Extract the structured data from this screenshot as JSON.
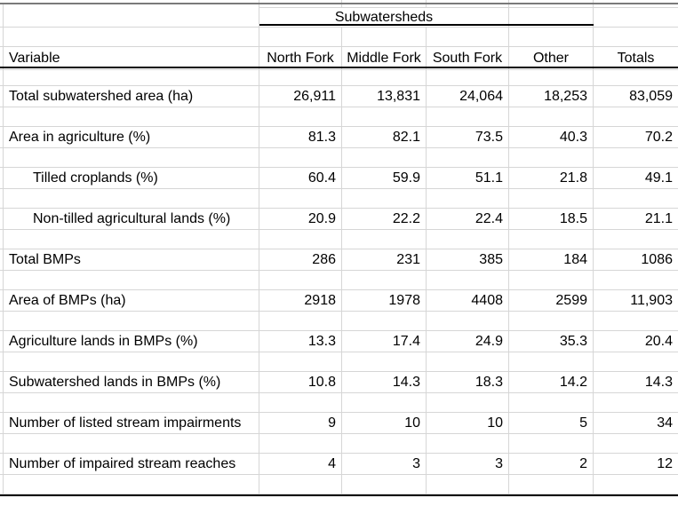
{
  "colors": {
    "background": "#ffffff",
    "gridline": "#d6d6d6",
    "heavy_rule": "#000000",
    "top_rule": "#7a7a7a",
    "text": "#000000"
  },
  "table": {
    "group_header": "Subwatersheds",
    "header": {
      "variable": "Variable",
      "columns": [
        "North Fork",
        "Middle Fork",
        "South Fork",
        "Other",
        "Totals"
      ]
    },
    "rows": [
      {
        "label": "Total subwatershed area (ha)",
        "indent": false,
        "values": [
          "26,911",
          "13,831",
          "24,064",
          "18,253",
          "83,059"
        ]
      },
      {
        "label": "Area in agriculture (%)",
        "indent": false,
        "values": [
          "81.3",
          "82.1",
          "73.5",
          "40.3",
          "70.2"
        ]
      },
      {
        "label": "Tilled croplands (%)",
        "indent": true,
        "values": [
          "60.4",
          "59.9",
          "51.1",
          "21.8",
          "49.1"
        ]
      },
      {
        "label": "Non-tilled agricultural lands (%)",
        "indent": true,
        "values": [
          "20.9",
          "22.2",
          "22.4",
          "18.5",
          "21.1"
        ]
      },
      {
        "label": "Total BMPs",
        "indent": false,
        "values": [
          "286",
          "231",
          "385",
          "184",
          "1086"
        ]
      },
      {
        "label": "Area of BMPs (ha)",
        "indent": false,
        "values": [
          "2918",
          "1978",
          "4408",
          "2599",
          "11,903"
        ]
      },
      {
        "label": "Agriculture lands in BMPs (%)",
        "indent": false,
        "values": [
          "13.3",
          "17.4",
          "24.9",
          "35.3",
          "20.4"
        ]
      },
      {
        "label": "Subwatershed lands in BMPs (%)",
        "indent": false,
        "values": [
          "10.8",
          "14.3",
          "18.3",
          "14.2",
          "14.3"
        ]
      },
      {
        "label": "Number of listed stream impairments",
        "indent": false,
        "values": [
          "9",
          "10",
          "10",
          "5",
          "34"
        ]
      },
      {
        "label": "Number of impaired stream reaches",
        "indent": false,
        "values": [
          "4",
          "3",
          "3",
          "2",
          "12"
        ]
      }
    ]
  }
}
